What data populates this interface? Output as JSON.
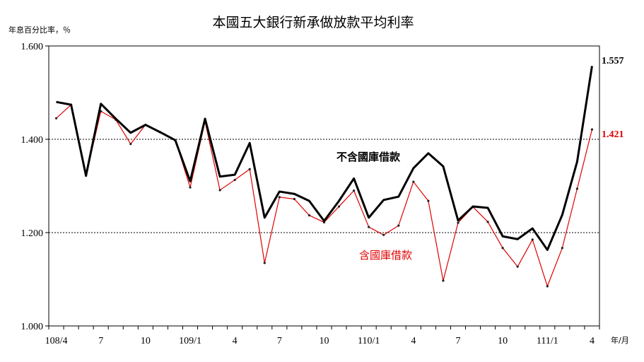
{
  "chart_data": {
    "type": "line",
    "title": "本國五大銀行新承做放款平均利率",
    "ylabel": "年息百分比率，％",
    "xlabel": "年/月",
    "ylim": [
      1.0,
      1.6
    ],
    "yticks": [
      "1.000",
      "1.200",
      "1.400",
      "1.600"
    ],
    "ytick_values": [
      1.0,
      1.2,
      1.4,
      1.6
    ],
    "dashed_gridlines": [
      1.2,
      1.4
    ],
    "x": [
      "108/4",
      "108/5",
      "108/6",
      "108/7",
      "108/8",
      "108/9",
      "108/10",
      "108/11",
      "108/12",
      "109/1",
      "109/2",
      "109/3",
      "109/4",
      "109/5",
      "109/6",
      "109/7",
      "109/8",
      "109/9",
      "109/10",
      "109/11",
      "109/12",
      "110/1",
      "110/2",
      "110/3",
      "110/4",
      "110/5",
      "110/6",
      "110/7",
      "110/8",
      "110/9",
      "110/10",
      "110/11",
      "110/12",
      "111/1",
      "111/2",
      "111/3",
      "111/4"
    ],
    "xtick_labels": [
      "108/4",
      "7",
      "10",
      "109/1",
      "4",
      "7",
      "10",
      "110/1",
      "4",
      "7",
      "10",
      "111/1",
      "4"
    ],
    "xtick_index": [
      0,
      3,
      6,
      9,
      12,
      15,
      18,
      21,
      24,
      27,
      30,
      33,
      36
    ],
    "series": [
      {
        "name": "不含國庫借款",
        "color": "#000000",
        "values": [
          1.48,
          1.474,
          1.322,
          1.476,
          1.444,
          1.414,
          1.431,
          1.415,
          1.398,
          1.31,
          1.444,
          1.32,
          1.324,
          1.392,
          1.232,
          1.288,
          1.283,
          1.268,
          1.225,
          1.268,
          1.316,
          1.232,
          1.27,
          1.277,
          1.338,
          1.37,
          1.342,
          1.226,
          1.256,
          1.253,
          1.192,
          1.186,
          1.209,
          1.163,
          1.238,
          1.352,
          1.557
        ],
        "end_label": "1.557"
      },
      {
        "name": "含國庫借款",
        "color": "#e00000",
        "values": [
          1.445,
          1.474,
          1.322,
          1.46,
          1.442,
          1.39,
          1.431,
          1.415,
          1.398,
          1.297,
          1.438,
          1.291,
          1.313,
          1.336,
          1.135,
          1.276,
          1.272,
          1.237,
          1.222,
          1.256,
          1.29,
          1.212,
          1.195,
          1.215,
          1.309,
          1.268,
          1.097,
          1.221,
          1.255,
          1.223,
          1.167,
          1.127,
          1.185,
          1.085,
          1.167,
          1.294,
          1.421
        ],
        "end_label": "1.421"
      }
    ]
  }
}
